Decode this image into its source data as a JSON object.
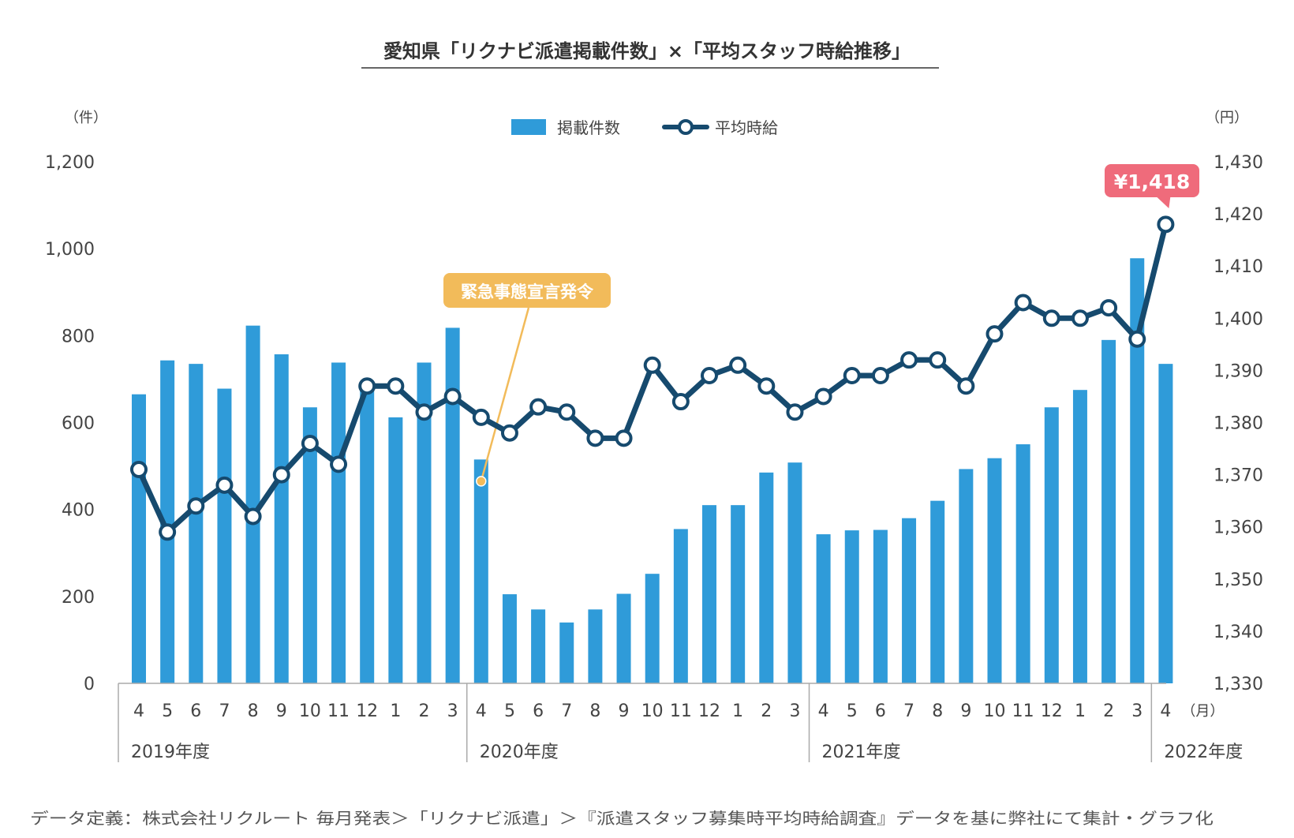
{
  "chart_data": {
    "type": "bar+line",
    "title": "愛知県「リクナビ派遣掲載件数」×「平均スタッフ時給推移」",
    "legend": {
      "placement": "top-center"
    },
    "left_axis": {
      "unit": "（件）",
      "ticks": [
        "0",
        "200",
        "400",
        "600",
        "800",
        "1,000",
        "1,200"
      ],
      "ylim": [
        0,
        1200
      ]
    },
    "right_axis": {
      "unit": "（円）",
      "ticks": [
        "1,330",
        "1,340",
        "1,350",
        "1,360",
        "1,370",
        "1,380",
        "1,390",
        "1,400",
        "1,410",
        "1,420",
        "1,430"
      ],
      "ylim": [
        1330,
        1430
      ]
    },
    "x_unit": "（月）",
    "categories": [
      "4",
      "5",
      "6",
      "7",
      "8",
      "9",
      "10",
      "11",
      "12",
      "1",
      "2",
      "3",
      "4",
      "5",
      "6",
      "7",
      "8",
      "9",
      "10",
      "11",
      "12",
      "1",
      "2",
      "3",
      "4",
      "5",
      "6",
      "7",
      "8",
      "9",
      "10",
      "11",
      "12",
      "1",
      "2",
      "3",
      "4"
    ],
    "fiscal_years": [
      {
        "label": "2019年度",
        "start": 0,
        "count": 12
      },
      {
        "label": "2020年度",
        "start": 12,
        "count": 12
      },
      {
        "label": "2021年度",
        "start": 24,
        "count": 12
      },
      {
        "label": "2022年度",
        "start": 36,
        "count": 1
      }
    ],
    "series": [
      {
        "name": "掲載件数",
        "type": "bar",
        "axis": "left",
        "color": "#2f9bd9",
        "values": [
          665,
          743,
          735,
          678,
          823,
          757,
          635,
          738,
          680,
          612,
          738,
          818,
          515,
          205,
          170,
          140,
          170,
          206,
          252,
          355,
          410,
          410,
          485,
          508,
          343,
          352,
          353,
          380,
          420,
          493,
          518,
          550,
          635,
          675,
          790,
          978,
          735
        ]
      },
      {
        "name": "平均時給",
        "type": "line",
        "axis": "right",
        "color": "#164a6e",
        "values": [
          1371,
          1359,
          1364,
          1368,
          1362,
          1370,
          1376,
          1372,
          1387,
          1387,
          1382,
          1385,
          1381,
          1378,
          1383,
          1382,
          1377,
          1377,
          1391,
          1384,
          1389,
          1391,
          1387,
          1382,
          1385,
          1389,
          1389,
          1392,
          1392,
          1387,
          1397,
          1403,
          1400,
          1400,
          1402,
          1396,
          1418
        ]
      }
    ],
    "annotations": [
      {
        "text": "緊急事態宣言発令",
        "index": 12,
        "series": "掲載件数",
        "value": 465,
        "color": "#f2bb5a"
      },
      {
        "text": "¥1,418",
        "index": 36,
        "series": "平均時給",
        "color": "#ef6b7b"
      }
    ],
    "source_note": "データ定義：株式会社リクルート 毎月発表＞「リクナビ派遣」＞『派遣スタッフ募集時平均時給調査』データを基に弊社にて集計・グラフ化"
  }
}
